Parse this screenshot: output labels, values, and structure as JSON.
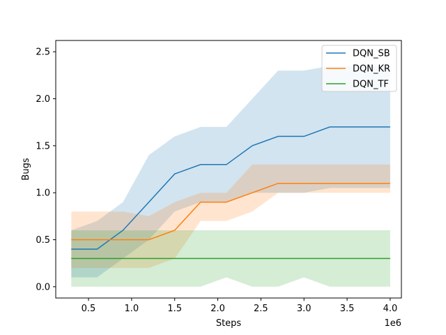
{
  "chart_data": {
    "type": "line",
    "xlabel": "Steps",
    "ylabel": "Bugs",
    "x_offset_text": "1e6",
    "xlim": [
      0.12,
      4.13
    ],
    "ylim": [
      -0.12,
      2.62
    ],
    "xticks": [
      0.5,
      1.0,
      1.5,
      2.0,
      2.5,
      3.0,
      3.5,
      4.0
    ],
    "xtick_labels": [
      "0.5",
      "1.0",
      "1.5",
      "2.0",
      "2.5",
      "3.0",
      "3.5",
      "4.0"
    ],
    "yticks": [
      0.0,
      0.5,
      1.0,
      1.5,
      2.0,
      2.5
    ],
    "ytick_labels": [
      "0.0",
      "0.5",
      "1.0",
      "1.5",
      "2.0",
      "2.5"
    ],
    "grid": false,
    "legend_position": "top-right",
    "x": [
      0.3,
      0.6,
      0.9,
      1.2,
      1.5,
      1.8,
      2.1,
      2.4,
      2.7,
      3.0,
      3.3,
      3.6,
      4.0
    ],
    "series": [
      {
        "name": "DQN_SB",
        "color": "#1f77b4",
        "values": [
          0.4,
          0.4,
          0.6,
          0.9,
          1.2,
          1.3,
          1.3,
          1.5,
          1.6,
          1.6,
          1.7,
          1.7,
          1.7
        ],
        "upper": [
          0.6,
          0.7,
          0.9,
          1.4,
          1.6,
          1.7,
          1.7,
          2.0,
          2.3,
          2.3,
          2.35,
          2.35,
          2.35
        ],
        "lower": [
          0.1,
          0.1,
          0.3,
          0.5,
          0.8,
          0.9,
          0.9,
          1.0,
          1.0,
          1.0,
          1.05,
          1.05,
          1.05
        ]
      },
      {
        "name": "DQN_KR",
        "color": "#ff7f0e",
        "values": [
          0.5,
          0.5,
          0.5,
          0.5,
          0.6,
          0.9,
          0.9,
          1.0,
          1.1,
          1.1,
          1.1,
          1.1,
          1.1
        ],
        "upper": [
          0.8,
          0.8,
          0.8,
          0.75,
          0.9,
          1.0,
          1.0,
          1.3,
          1.3,
          1.3,
          1.3,
          1.3,
          1.3
        ],
        "lower": [
          0.2,
          0.2,
          0.2,
          0.2,
          0.3,
          0.7,
          0.7,
          0.8,
          1.0,
          1.0,
          1.0,
          1.0,
          1.0
        ]
      },
      {
        "name": "DQN_TF",
        "color": "#2ca02c",
        "values": [
          0.3,
          0.3,
          0.3,
          0.3,
          0.3,
          0.3,
          0.3,
          0.3,
          0.3,
          0.3,
          0.3,
          0.3,
          0.3
        ],
        "upper": [
          0.6,
          0.6,
          0.6,
          0.6,
          0.6,
          0.6,
          0.6,
          0.6,
          0.6,
          0.6,
          0.6,
          0.6,
          0.6
        ],
        "lower": [
          0.0,
          0.0,
          0.0,
          0.0,
          0.0,
          0.0,
          0.1,
          0.0,
          0.0,
          0.1,
          0.0,
          0.0,
          0.0
        ]
      }
    ]
  }
}
